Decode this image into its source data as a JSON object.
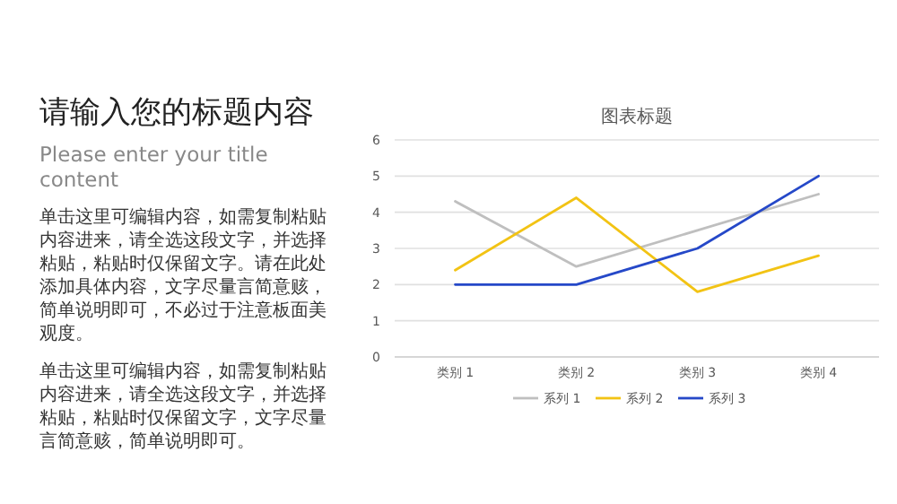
{
  "chart_data": [
    {
      "type": "other",
      "title": "请输入您的标题内容",
      "subtitle": "Please enter your title content",
      "annotations": [
        "单击这里可编辑内容，如需复制粘贴内容进来，请全选这段文字，并选择粘贴，粘贴时仅保留文字。请在此处添加具体内容，文字尽量言简意赅，简单说明即可，不必过于注意板面美观度。",
        "单击这里可编辑内容，如需复制粘贴内容进来，请全选这段文字，并选择粘贴，粘贴时仅保留文字，文字尽量言简意赅，简单说明即可。"
      ]
    },
    {
      "type": "line",
      "title": "图表标题",
      "categories": [
        "类别 1",
        "类别 2",
        "类别 3",
        "类别 4"
      ],
      "series": [
        {
          "name": "系列 1",
          "color": "#bfbfbf",
          "values": [
            4.3,
            2.5,
            3.5,
            4.5
          ]
        },
        {
          "name": "系列 2",
          "color": "#f2c314",
          "values": [
            2.4,
            4.4,
            1.8,
            2.8
          ]
        },
        {
          "name": "系列 3",
          "color": "#2548c8",
          "values": [
            2,
            2,
            3,
            5
          ]
        }
      ],
      "ylim": [
        0,
        6
      ],
      "yticks": [
        0,
        1,
        2,
        3,
        4,
        5,
        6
      ],
      "grid": "y",
      "legend": "bottom",
      "marker": "none",
      "line_style": "solid"
    }
  ]
}
